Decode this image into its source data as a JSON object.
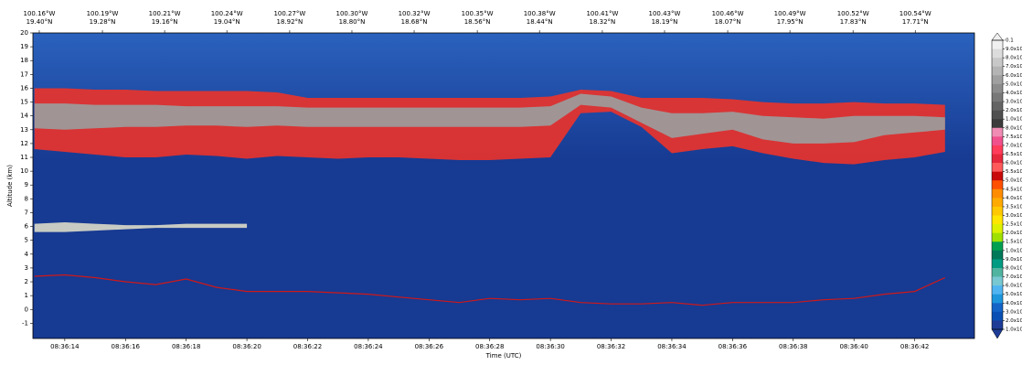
{
  "chart_data": {
    "type": "curtain",
    "xlabel": "Time (UTC)",
    "ylabel": "Altitude (km)",
    "background": "#173a92",
    "xlim": [
      "08:36:12.95",
      "08:36:43.97"
    ],
    "xticks": [
      "08:36:14",
      "08:36:16",
      "08:36:18",
      "08:36:20",
      "08:36:22",
      "08:36:24",
      "08:36:26",
      "08:36:28",
      "08:36:30",
      "08:36:32",
      "08:36:34",
      "08:36:36",
      "08:36:38",
      "08:36:40",
      "08:36:42"
    ],
    "top_lon_ticks": [
      {
        "value": "08:36:13.16",
        "label": "100.16°W"
      },
      {
        "value": "08:36:15.24",
        "label": "100.19°W"
      },
      {
        "value": "08:36:17.29",
        "label": "100.21°W"
      },
      {
        "value": "08:36:19.34",
        "label": "100.24°W"
      },
      {
        "value": "08:36:21.41",
        "label": "100.27°W"
      },
      {
        "value": "08:36:23.46",
        "label": "100.30°W"
      },
      {
        "value": "08:36:25.51",
        "label": "100.32°W"
      },
      {
        "value": "08:36:27.59",
        "label": "100.35°W"
      },
      {
        "value": "08:36:29.64",
        "label": "100.38°W"
      },
      {
        "value": "08:36:31.71",
        "label": "100.41°W"
      },
      {
        "value": "08:36:33.76",
        "label": "100.43°W"
      },
      {
        "value": "08:36:35.84",
        "label": "100.46°W"
      },
      {
        "value": "08:36:37.89",
        "label": "100.49°W"
      },
      {
        "value": "08:36:39.97",
        "label": "100.52°W"
      },
      {
        "value": "08:36:42.02",
        "label": "100.54°W"
      }
    ],
    "top_lat_ticks": [
      {
        "value": "08:36:13.16",
        "label": "19.40°N"
      },
      {
        "value": "08:36:15.24",
        "label": "19.28°N"
      },
      {
        "value": "08:36:17.29",
        "label": "19.16°N"
      },
      {
        "value": "08:36:19.34",
        "label": "19.04°N"
      },
      {
        "value": "08:36:21.41",
        "label": "18.92°N"
      },
      {
        "value": "08:36:23.46",
        "label": "18.80°N"
      },
      {
        "value": "08:36:25.51",
        "label": "18.68°N"
      },
      {
        "value": "08:36:27.59",
        "label": "18.56°N"
      },
      {
        "value": "08:36:29.64",
        "label": "18.44°N"
      },
      {
        "value": "08:36:31.71",
        "label": "18.32°N"
      },
      {
        "value": "08:36:33.76",
        "label": "18.19°N"
      },
      {
        "value": "08:36:35.84",
        "label": "18.07°N"
      },
      {
        "value": "08:36:37.89",
        "label": "17.95°N"
      },
      {
        "value": "08:36:39.97",
        "label": "17.83°N"
      },
      {
        "value": "08:36:42.02",
        "label": "17.71°N"
      }
    ],
    "ylim": [
      -2.1,
      20
    ],
    "yticks": [
      -1,
      0,
      1,
      2,
      3,
      4,
      5,
      6,
      7,
      8,
      9,
      10,
      11,
      12,
      13,
      14,
      15,
      16,
      17,
      18,
      19,
      20
    ],
    "x": [
      "08:36:13",
      "08:36:14",
      "08:36:15",
      "08:36:16",
      "08:36:17",
      "08:36:18",
      "08:36:19",
      "08:36:20",
      "08:36:21",
      "08:36:22",
      "08:36:23",
      "08:36:24",
      "08:36:25",
      "08:36:26",
      "08:36:27",
      "08:36:28",
      "08:36:29",
      "08:36:30",
      "08:36:31",
      "08:36:32",
      "08:36:33",
      "08:36:34",
      "08:36:35",
      "08:36:36",
      "08:36:37",
      "08:36:38",
      "08:36:39",
      "08:36:40",
      "08:36:41",
      "08:36:42",
      "08:36:43"
    ],
    "layers": [
      {
        "color": "#e8332c",
        "top": [
          16.0,
          16.0,
          15.9,
          15.9,
          15.8,
          15.8,
          15.8,
          15.8,
          15.7,
          15.3,
          15.3,
          15.3,
          15.3,
          15.3,
          15.3,
          15.3,
          15.3,
          15.4,
          15.9,
          15.8,
          15.3,
          15.3,
          15.3,
          15.2,
          15.0,
          14.9,
          14.9,
          15.0,
          14.9,
          14.9,
          14.8
        ],
        "base": [
          11.6,
          11.4,
          11.2,
          11.0,
          11.0,
          11.2,
          11.1,
          10.9,
          11.1,
          11.0,
          10.9,
          11.0,
          11.0,
          10.9,
          10.8,
          10.8,
          10.9,
          11.0,
          14.2,
          14.3,
          13.2,
          11.3,
          11.6,
          11.8,
          11.3,
          10.9,
          10.6,
          10.5,
          10.8,
          11.0,
          11.4
        ]
      },
      {
        "color": "#9c9c9c",
        "top": [
          14.9,
          14.9,
          14.8,
          14.8,
          14.8,
          14.7,
          14.7,
          14.7,
          14.7,
          14.6,
          14.6,
          14.6,
          14.6,
          14.6,
          14.6,
          14.6,
          14.6,
          14.7,
          15.6,
          15.4,
          14.6,
          14.2,
          14.2,
          14.3,
          14.0,
          13.9,
          13.8,
          14.0,
          14.0,
          14.0,
          13.9
        ],
        "base": [
          13.1,
          13.0,
          13.1,
          13.2,
          13.2,
          13.3,
          13.3,
          13.2,
          13.3,
          13.2,
          13.2,
          13.2,
          13.2,
          13.2,
          13.2,
          13.2,
          13.2,
          13.3,
          14.8,
          14.6,
          13.5,
          12.4,
          12.7,
          13.0,
          12.3,
          12.0,
          12.0,
          12.1,
          12.6,
          12.8,
          13.0
        ]
      },
      {
        "color": "#d8d8c8",
        "top": [
          6.2,
          6.3,
          6.2,
          6.1,
          6.1,
          6.2,
          6.2,
          6.2,
          null,
          null,
          null,
          null,
          null,
          null,
          null,
          null,
          null,
          null,
          null,
          null,
          null,
          null,
          null,
          null,
          null,
          null,
          null,
          null,
          null,
          null,
          null
        ],
        "base": [
          5.6,
          5.6,
          5.7,
          5.8,
          5.9,
          5.9,
          5.9,
          5.9,
          null,
          null,
          null,
          null,
          null,
          null,
          null,
          null,
          null,
          null,
          null,
          null,
          null,
          null,
          null,
          null,
          null,
          null,
          null,
          null,
          null,
          null,
          null
        ]
      }
    ],
    "surface": {
      "color": "#d01818",
      "values": [
        2.4,
        2.5,
        2.3,
        2.0,
        1.8,
        2.2,
        1.6,
        1.3,
        1.3,
        1.3,
        1.2,
        1.1,
        0.9,
        0.7,
        0.5,
        0.8,
        0.7,
        0.8,
        0.5,
        0.4,
        0.4,
        0.5,
        0.3,
        0.5,
        0.5,
        0.5,
        0.7,
        0.8,
        1.1,
        1.3,
        2.3
      ]
    },
    "colorbar": {
      "ticks": [
        {
          "value": 0.1,
          "label": "0.1"
        },
        {
          "value": 0.09,
          "label": "9.0x10"
        },
        {
          "value": 0.08,
          "label": "8.0x10"
        },
        {
          "value": 0.07,
          "label": "7.0x10"
        },
        {
          "value": 0.06,
          "label": "6.0x10"
        },
        {
          "value": 0.05,
          "label": "5.0x10"
        },
        {
          "value": 0.04,
          "label": "4.0x10"
        },
        {
          "value": 0.03,
          "label": "3.0x10"
        },
        {
          "value": 0.02,
          "label": "2.0x10"
        },
        {
          "value": 0.01,
          "label": "1.0x10"
        },
        {
          "value": 0.008,
          "label": "8.0x10"
        },
        {
          "value": 0.0075,
          "label": "7.5x10"
        },
        {
          "value": 0.007,
          "label": "7.0x10"
        },
        {
          "value": 0.0065,
          "label": "6.5x10"
        },
        {
          "value": 0.006,
          "label": "6.0x10"
        },
        {
          "value": 0.0055,
          "label": "5.5x10"
        },
        {
          "value": 0.005,
          "label": "5.0x10"
        },
        {
          "value": 0.0045,
          "label": "4.5x10"
        },
        {
          "value": 0.004,
          "label": "4.0x10"
        },
        {
          "value": 0.0035,
          "label": "3.5x10"
        },
        {
          "value": 0.003,
          "label": "3.0x10"
        },
        {
          "value": 0.0025,
          "label": "2.5x10"
        },
        {
          "value": 0.002,
          "label": "2.0x10"
        },
        {
          "value": 0.0015,
          "label": "1.5x10"
        },
        {
          "value": 0.001,
          "label": "1.0x10"
        },
        {
          "value": 0.0009,
          "label": "9.0x10"
        },
        {
          "value": 0.0008,
          "label": "8.0x10"
        },
        {
          "value": 0.0007,
          "label": "7.0x10"
        },
        {
          "value": 0.0006,
          "label": "6.0x10"
        },
        {
          "value": 0.0005,
          "label": "5.0x10"
        },
        {
          "value": 0.0004,
          "label": "4.0x10"
        },
        {
          "value": 0.0003,
          "label": "3.0x10"
        },
        {
          "value": 0.0002,
          "label": "2.0x10"
        },
        {
          "value": 0.0001,
          "label": "1.0x10"
        }
      ],
      "colors": [
        "#f0f0f0",
        "#dcdcdc",
        "#c8c8c8",
        "#b4b4b4",
        "#a0a0a0",
        "#8c8c8c",
        "#787878",
        "#646464",
        "#505050",
        "#3c3c3c",
        "#f08cb4",
        "#f0508c",
        "#ff3c5a",
        "#e6283c",
        "#ff5a5a",
        "#c80a0a",
        "#ff5000",
        "#ff8c00",
        "#ffaa00",
        "#ffc800",
        "#ffe600",
        "#dcf000",
        "#a0e000",
        "#00a050",
        "#00785a",
        "#009b82",
        "#50b4a0",
        "#78c8d2",
        "#50b4f0",
        "#1e96dc",
        "#1464c8",
        "#0a50b4",
        "#1e3c96"
      ]
    }
  }
}
